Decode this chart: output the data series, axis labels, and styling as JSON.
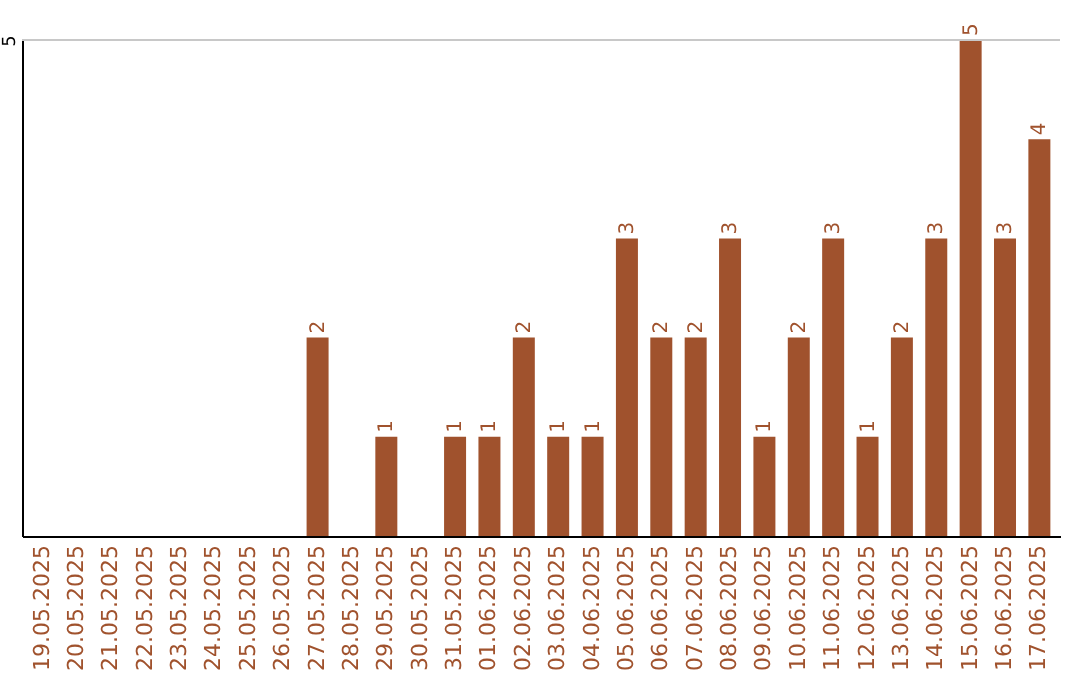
{
  "chart_data": {
    "type": "bar",
    "categories": [
      "19.05.2025",
      "20.05.2025",
      "21.05.2025",
      "22.05.2025",
      "23.05.2025",
      "24.05.2025",
      "25.05.2025",
      "26.05.2025",
      "27.05.2025",
      "28.05.2025",
      "29.05.2025",
      "30.05.2025",
      "31.05.2025",
      "01.06.2025",
      "02.06.2025",
      "03.06.2025",
      "04.06.2025",
      "05.06.2025",
      "06.06.2025",
      "07.06.2025",
      "08.06.2025",
      "09.06.2025",
      "10.06.2025",
      "11.06.2025",
      "12.06.2025",
      "13.06.2025",
      "14.06.2025",
      "15.06.2025",
      "16.06.2025",
      "17.06.2025"
    ],
    "values": [
      0,
      0,
      0,
      0,
      0,
      0,
      0,
      0,
      2,
      0,
      1,
      0,
      1,
      1,
      2,
      1,
      1,
      3,
      2,
      2,
      3,
      1,
      2,
      3,
      1,
      2,
      3,
      5,
      3,
      4
    ],
    "value_labels": [
      null,
      null,
      null,
      null,
      null,
      null,
      null,
      null,
      "2",
      null,
      "1",
      null,
      "1",
      "1",
      "2",
      "1",
      "1",
      "3",
      "2",
      "2",
      "3",
      "1",
      "2",
      "3",
      "1",
      "2",
      "3",
      "5",
      "3",
      "4"
    ],
    "color": "#a0522d",
    "ylim": [
      0,
      5
    ],
    "yticks": [
      5
    ],
    "ref_lines": [
      {
        "axis": "y",
        "value": 5,
        "color": "#c8c8c8"
      }
    ]
  }
}
